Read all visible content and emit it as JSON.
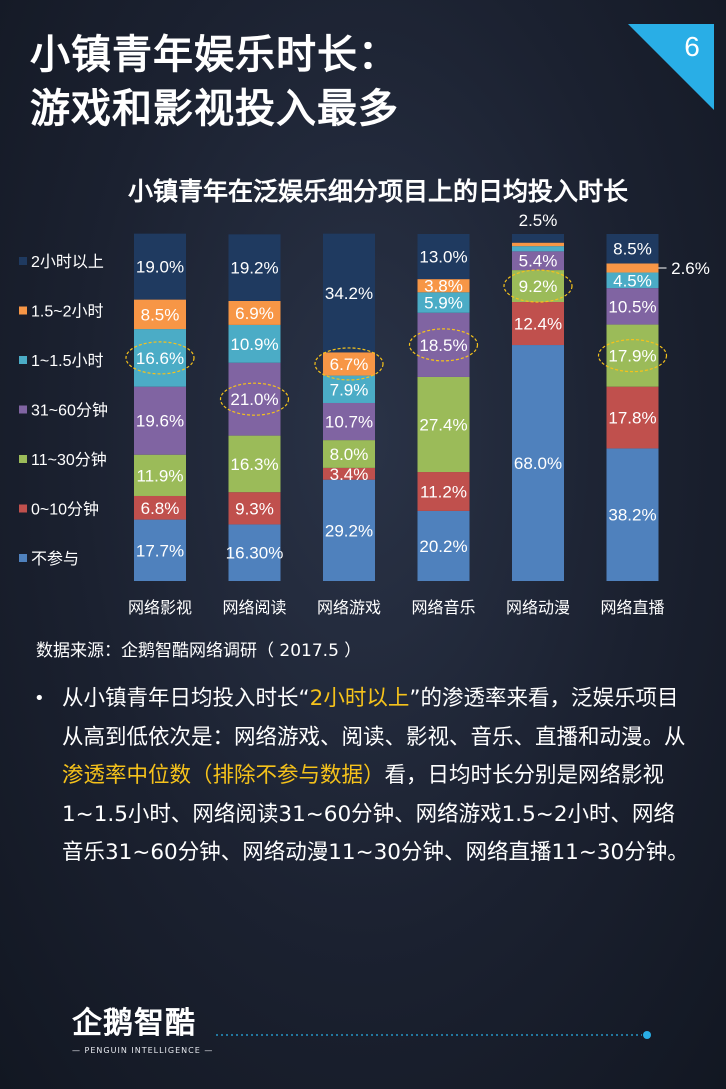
{
  "slide": {
    "page_number": "6",
    "title_line1": "小镇青年娱乐时长：",
    "title_line2": "游戏和影视投入最多"
  },
  "colors": {
    "background": "#1b2130",
    "accent": "#29aee6",
    "highlight_text": "#f5c21b",
    "label_white": "#ffffff"
  },
  "chart_data": {
    "type": "bar",
    "stacked": true,
    "title": "小镇青年在泛娱乐细分项目上的日均投入时长",
    "categories": [
      "网络影视",
      "网络阅读",
      "网络游戏",
      "网络音乐",
      "网络动漫",
      "网络直播"
    ],
    "ylim": [
      0,
      100
    ],
    "legend_position": "left",
    "series": [
      {
        "name": "不参与",
        "color": "#4f81bd",
        "values": [
          17.7,
          16.3,
          29.2,
          20.2,
          68.0,
          38.2
        ],
        "labels": [
          "17.7%",
          "16.30%",
          "29.2%",
          "20.2%",
          "68.0%",
          "38.2%"
        ]
      },
      {
        "name": "0~10分钟",
        "color": "#c0504d",
        "values": [
          6.8,
          9.3,
          3.4,
          11.2,
          12.4,
          17.8
        ],
        "labels": [
          "6.8%",
          "9.3%",
          "3.4%",
          "11.2%",
          "12.4%",
          "17.8%"
        ]
      },
      {
        "name": "11~30分钟",
        "color": "#9bbb59",
        "values": [
          11.9,
          16.3,
          8.0,
          27.4,
          9.2,
          17.9
        ],
        "labels": [
          "11.9%",
          "16.3%",
          "8.0%",
          "27.4%",
          "9.2%",
          "17.9%"
        ]
      },
      {
        "name": "31~60分钟",
        "color": "#8064a2",
        "values": [
          19.6,
          21.0,
          10.7,
          18.5,
          5.4,
          10.5
        ],
        "labels": [
          "19.6%",
          "21.0%",
          "10.7%",
          "18.5%",
          "5.4%",
          "10.5%"
        ]
      },
      {
        "name": "1~1.5小时",
        "color": "#4bacc6",
        "values": [
          16.6,
          10.9,
          7.9,
          5.9,
          1.5,
          4.5
        ],
        "labels": [
          "16.6%",
          "10.9%",
          "7.9%",
          "5.9%",
          "",
          "4.5%"
        ]
      },
      {
        "name": "1.5~2小时",
        "color": "#f79646",
        "values": [
          8.5,
          6.9,
          6.7,
          3.8,
          1.0,
          2.6
        ],
        "labels": [
          "8.5%",
          "6.9%",
          "6.7%",
          "3.8%",
          "",
          "2.6%"
        ]
      },
      {
        "name": "2小时以上",
        "color": "#1f3a60",
        "values": [
          19.0,
          19.2,
          34.2,
          13.0,
          2.5,
          8.5
        ],
        "labels": [
          "19.0%",
          "19.2%",
          "34.2%",
          "13.0%",
          "2.5%",
          "8.5%"
        ]
      }
    ],
    "median_highlights": [
      {
        "category": "网络影视",
        "series": "1~1.5小时"
      },
      {
        "category": "网络阅读",
        "series": "31~60分钟"
      },
      {
        "category": "网络游戏",
        "series": "1.5~2小时"
      },
      {
        "category": "网络音乐",
        "series": "31~60分钟"
      },
      {
        "category": "网络动漫",
        "series": "11~30分钟"
      },
      {
        "category": "网络直播",
        "series": "11~30分钟"
      }
    ]
  },
  "source": {
    "text": "数据来源：企鹅智酷网络调研（   2017.5 ）"
  },
  "paragraph": {
    "bullet": "•",
    "t1": "从小镇青年日均投入时长“",
    "h1": "2小时以上",
    "t2": "”的渗透率来看，泛娱乐项目从高到低依次是：网络游戏、阅读、影视、音乐、直播和动漫。从",
    "h2": "渗透率中位数（排除不参与数据）",
    "t3": "看，日均时长分别是网络影视1~1.5小时、网络阅读31~60分钟、网络游戏1.5~2小时、网络音乐31~60分钟、网络动漫11~30分钟、网络直播11~30分钟。"
  },
  "logo": {
    "name_cn": "企鹅智酷",
    "name_en": "PENGUIN INTELLIGENCE"
  }
}
